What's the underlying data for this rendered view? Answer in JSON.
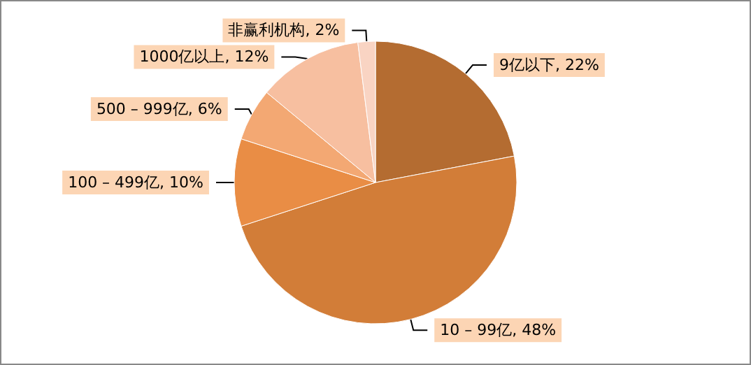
{
  "chart_data": {
    "type": "pie",
    "categories": [
      "9亿以下",
      "10 – 99亿",
      "100 – 499亿",
      "500 – 999亿",
      "1000亿以上",
      "非赢利机构"
    ],
    "values": [
      22,
      48,
      10,
      6,
      12,
      2
    ],
    "colors": [
      "#b46c31",
      "#d27d38",
      "#e98d45",
      "#f3a873",
      "#f7bfa0",
      "#f9d4c3"
    ],
    "value_labels": [
      ", 22%",
      ", 48%",
      ", 10%",
      ", 6%",
      ", 12%",
      ", 2%"
    ],
    "legend": false
  }
}
